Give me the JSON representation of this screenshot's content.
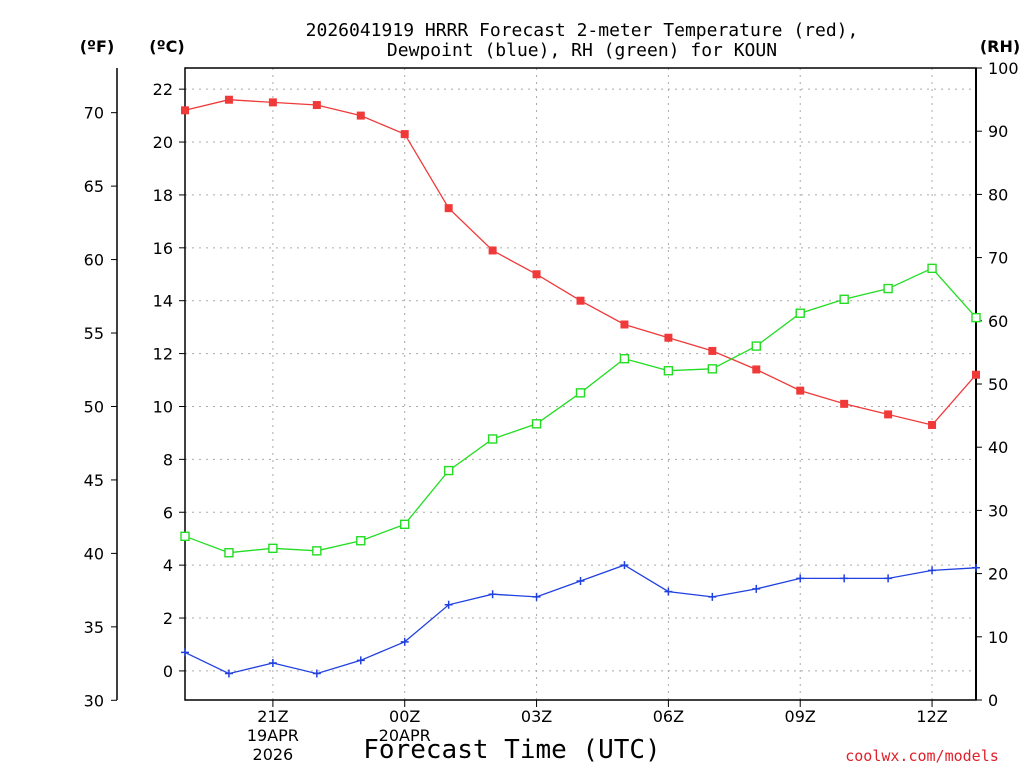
{
  "chart_data": {
    "type": "line",
    "title_line1": "2026041919 HRRR Forecast 2-meter Temperature (red),",
    "title_line2": "Dewpoint (blue), RH (green) for KOUN",
    "xlabel": "Forecast Time (UTC)",
    "credit": "coolwx.com/models",
    "unit_f": "(ºF)",
    "unit_c": "(ºC)",
    "unit_rh": "(RH)",
    "x_hours_after_19z": [
      0,
      1,
      2,
      3,
      4,
      5,
      6,
      7,
      8,
      9,
      10,
      11,
      12,
      13,
      14,
      15,
      16,
      17,
      18
    ],
    "x_ticks": [
      {
        "h": 2,
        "label": "21Z",
        "sub1": "19APR",
        "sub2": "2026"
      },
      {
        "h": 5,
        "label": "00Z",
        "sub1": "20APR",
        "sub2": ""
      },
      {
        "h": 8,
        "label": "03Z",
        "sub1": "",
        "sub2": ""
      },
      {
        "h": 11,
        "label": "06Z",
        "sub1": "",
        "sub2": ""
      },
      {
        "h": 14,
        "label": "09Z",
        "sub1": "",
        "sub2": ""
      },
      {
        "h": 17,
        "label": "12Z",
        "sub1": "",
        "sub2": ""
      }
    ],
    "yc_range": [
      -1.1,
      22.8
    ],
    "yc_ticks": [
      "0",
      "2",
      "4",
      "6",
      "8",
      "10",
      "12",
      "14",
      "16",
      "18",
      "20",
      "22"
    ],
    "yf_ticks": [
      "30",
      "35",
      "40",
      "45",
      "50",
      "55",
      "60",
      "65",
      "70"
    ],
    "rh_range": [
      0,
      100
    ],
    "rh_ticks": [
      "0",
      "10",
      "20",
      "30",
      "40",
      "50",
      "60",
      "70",
      "80",
      "90",
      "100"
    ],
    "grid": true,
    "series": [
      {
        "name": "Temperature",
        "axis": "c",
        "color": "#f03a3a",
        "marker": "filled-square",
        "values": [
          21.2,
          21.6,
          21.5,
          21.4,
          21.0,
          20.3,
          17.5,
          15.9,
          15.0,
          14.0,
          13.1,
          12.6,
          12.1,
          11.4,
          10.6,
          10.1,
          9.7,
          9.3,
          11.2
        ]
      },
      {
        "name": "Dewpoint",
        "axis": "c",
        "color": "#2040e0",
        "marker": "plus",
        "values": [
          0.7,
          -0.1,
          0.3,
          -0.1,
          0.4,
          1.1,
          2.5,
          2.9,
          2.8,
          3.4,
          4.0,
          3.0,
          2.8,
          3.1,
          3.5,
          3.5,
          3.5,
          3.8,
          3.9
        ]
      },
      {
        "name": "RH",
        "axis": "rh",
        "color": "#22dd22",
        "marker": "open-square",
        "values": [
          25.9,
          23.3,
          24.0,
          23.6,
          25.2,
          27.8,
          36.3,
          41.3,
          43.7,
          48.6,
          54.0,
          52.1,
          52.4,
          56.0,
          61.2,
          63.4,
          65.1,
          68.3,
          60.5
        ]
      }
    ]
  }
}
